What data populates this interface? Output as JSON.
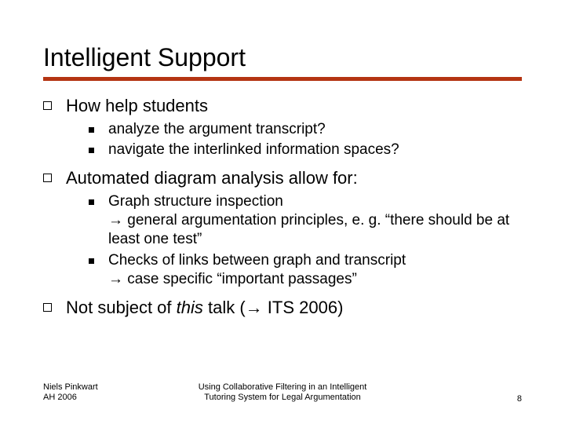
{
  "title": "Intelligent Support",
  "rule_color": "#b43412",
  "items": [
    {
      "text": "How help students",
      "subs": [
        {
          "text": "analyze the argument transcript?"
        },
        {
          "text": "navigate the interlinked information spaces?"
        }
      ]
    },
    {
      "text": "Automated diagram analysis allow for:",
      "subs": [
        {
          "text": "Graph structure inspection",
          "cont": "→ general argumentation principles, e. g. “there should be at least one test”"
        },
        {
          "text": "Checks of links between graph and transcript",
          "cont": "→ case specific “important passages”"
        }
      ]
    },
    {
      "html_parts": {
        "pre": "Not subject of ",
        "italic": "this",
        "post": " talk (→ ITS 2006)"
      }
    }
  ],
  "footer": {
    "left_line1": "Niels Pinkwart",
    "left_line2": "AH 2006",
    "center_line1": "Using Collaborative Filtering in an Intelligent",
    "center_line2": "Tutoring System for Legal Argumentation",
    "page": "8"
  },
  "typography": {
    "title_fontsize": 32,
    "lvl1_fontsize": 22,
    "lvl2_fontsize": 19,
    "footer_fontsize": 11,
    "font_family": "Verdana"
  },
  "colors": {
    "background": "#ffffff",
    "text": "#000000",
    "rule": "#b43412"
  }
}
